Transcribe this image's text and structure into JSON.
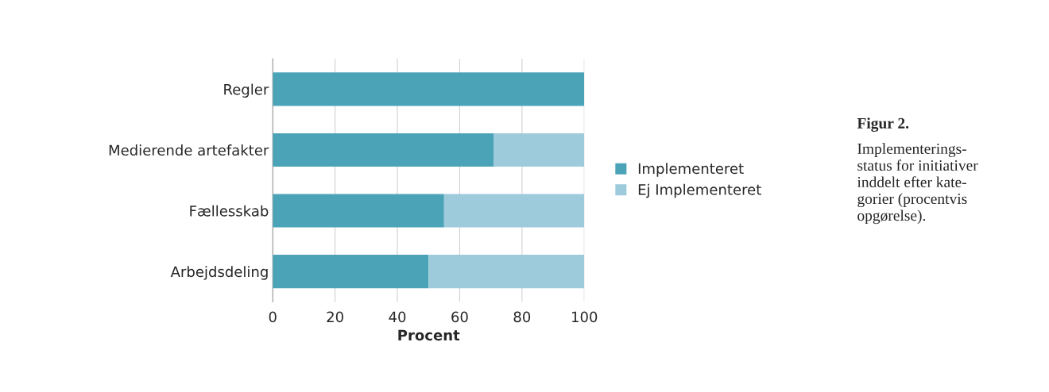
{
  "chart_data": {
    "type": "bar",
    "orientation": "horizontal",
    "stacked": true,
    "xlabel": "Procent",
    "categories": [
      "Regler",
      "Medierende artefakter",
      "Fællesskab",
      "Arbejdsdeling"
    ],
    "series": [
      {
        "name": "Implementeret",
        "color": "#4ba3b8",
        "values": [
          100,
          71,
          55,
          50
        ]
      },
      {
        "name": "Ej Implementeret",
        "color": "#9ecbdb",
        "values": [
          null,
          29,
          45,
          50
        ]
      }
    ],
    "xlim": [
      0,
      100
    ],
    "xticks": [
      0,
      20,
      40,
      60,
      80,
      100
    ],
    "grid": "x",
    "legend": "right",
    "annotations": [
      "Figur 2.",
      "Implementerings-\nstatus for initiativer\ninddelt efter kate-\ngorier (procentvis\nopgørelse)."
    ]
  }
}
